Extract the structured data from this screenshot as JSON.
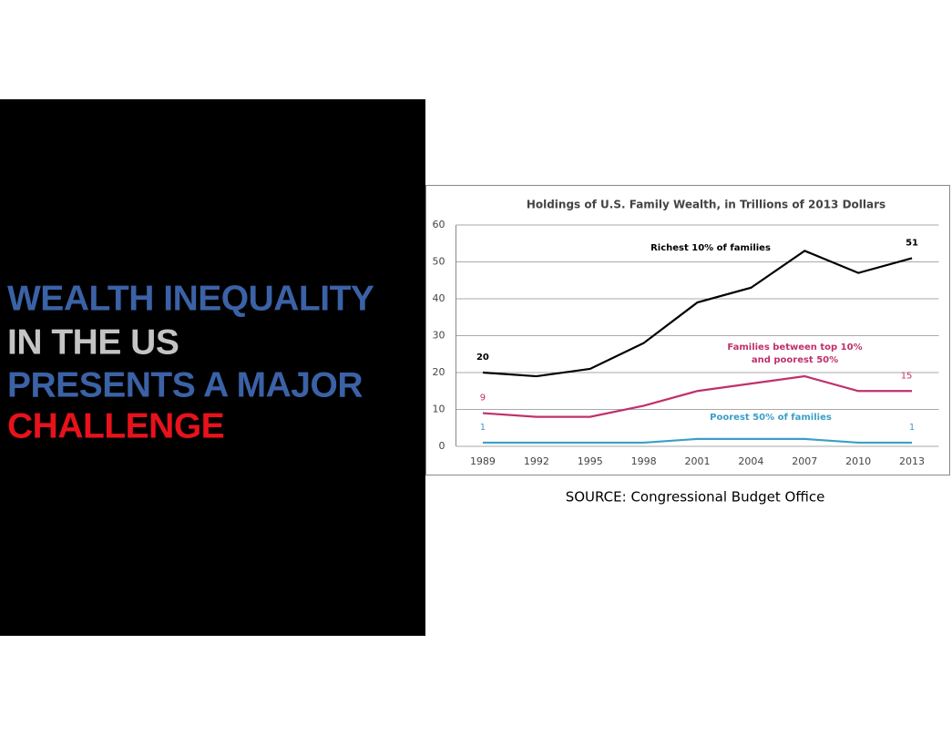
{
  "slide": {
    "headline": [
      {
        "text": "WEALTH INEQUALITY",
        "color": "#3b62a6"
      },
      {
        "text": "IN THE US",
        "color": "#c4c4c4"
      },
      {
        "text": "PRESENTS A MAJOR",
        "color": "#3b62a6"
      },
      {
        "text": "CHALLENGE",
        "color": "#e8121b"
      }
    ],
    "source": "SOURCE: Congressional Budget Office"
  },
  "chart_data": {
    "type": "line",
    "title": "Holdings of U.S. Family Wealth, in Trillions of 2013 Dollars",
    "categories": [
      "1989",
      "1992",
      "1995",
      "1998",
      "2001",
      "2004",
      "2007",
      "2010",
      "2013"
    ],
    "series": [
      {
        "name": "Richest 10% of families",
        "color": "#000000",
        "values": [
          20,
          19,
          21,
          28,
          39,
          43,
          53,
          47,
          51
        ]
      },
      {
        "name": "Families between top 10% and poorest 50%",
        "color": "#c0306a",
        "values": [
          9,
          8,
          8,
          11,
          15,
          17,
          19,
          15,
          15
        ]
      },
      {
        "name": "Poorest 50% of families",
        "color": "#3a9fc8",
        "values": [
          1,
          1,
          1,
          1,
          2,
          2,
          2,
          1,
          1
        ]
      }
    ],
    "ylim": [
      0,
      60
    ],
    "yticks": [
      0,
      10,
      20,
      30,
      40,
      50,
      60
    ],
    "grid": true
  }
}
